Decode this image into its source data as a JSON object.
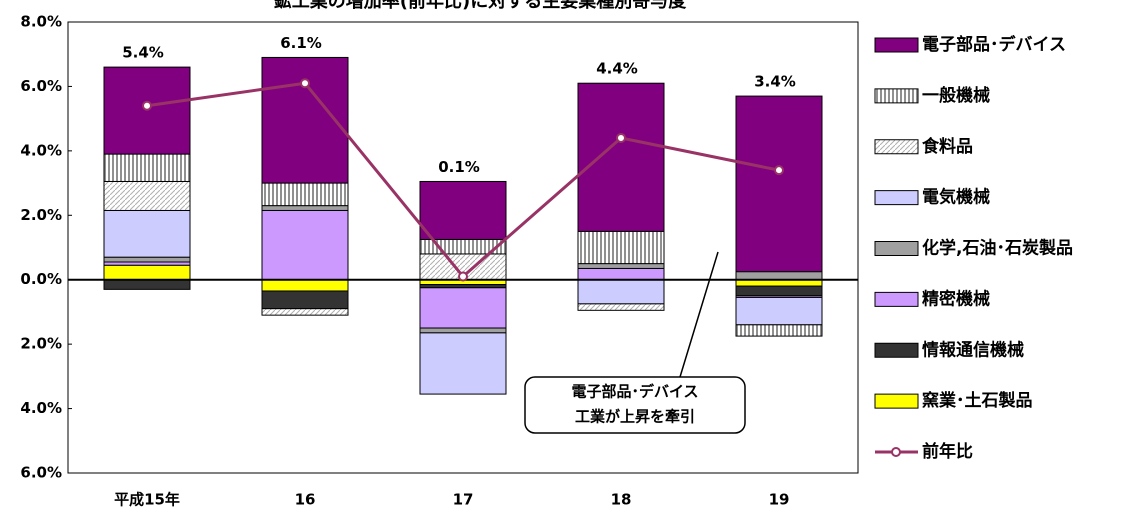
{
  "chart_data": {
    "type": "stacked_bar_line",
    "title": "鉱工業の増加率(前年比)に対する主要業種別寄与度",
    "categories": [
      "平成15年",
      "16",
      "17",
      "18",
      "19"
    ],
    "series": [
      {
        "name": "電子部品･デバイス",
        "color": "#800080",
        "values": [
          2.7,
          3.9,
          1.8,
          4.6,
          5.45
        ]
      },
      {
        "name": "一般機械",
        "color": "#909090",
        "pattern": "vstripe",
        "values": [
          0.85,
          0.7,
          0.45,
          1.0,
          -0.35
        ]
      },
      {
        "name": "食料品",
        "color": "#b0b0b0",
        "pattern": "diag",
        "values": [
          0.9,
          -0.2,
          0.8,
          -0.2,
          0
        ]
      },
      {
        "name": "電気機械",
        "color": "#ccccff",
        "values": [
          1.45,
          0,
          -1.9,
          -0.75,
          -0.85
        ]
      },
      {
        "name": "化学,石油･石炭製品",
        "color": "#a0a0a0",
        "values": [
          0.15,
          0.15,
          -0.15,
          0.15,
          0.25
        ]
      },
      {
        "name": "精密機械",
        "color": "#cc99ff",
        "values": [
          0.1,
          2.15,
          -1.25,
          0.35,
          -0.05
        ]
      },
      {
        "name": "情報通信機械",
        "color": "#333333",
        "values": [
          -0.3,
          -0.55,
          -0.1,
          0,
          -0.3
        ]
      },
      {
        "name": "窯業･土石製品",
        "color": "#ffff00",
        "values": [
          0.45,
          -0.35,
          -0.15,
          0,
          -0.2
        ]
      }
    ],
    "line": {
      "name": "前年比",
      "color": "#993366",
      "values": [
        5.4,
        6.1,
        0.1,
        4.4,
        3.4
      ],
      "value_labels": [
        "5.4%",
        "6.1%",
        "0.1%",
        "4.4%",
        "3.4%"
      ]
    },
    "stack_order": [
      7,
      6,
      5,
      4,
      3,
      2,
      1,
      0
    ],
    "ylim": [
      -6,
      8
    ],
    "yticks": [
      {
        "value": 8,
        "label": "8.0%"
      },
      {
        "value": 6,
        "label": "6.0%"
      },
      {
        "value": 4,
        "label": "4.0%"
      },
      {
        "value": 2,
        "label": "2.0%"
      },
      {
        "value": 0,
        "label": "0.0%"
      },
      {
        "value": -2,
        "label": "2.0%"
      },
      {
        "value": -4,
        "label": "4.0%"
      },
      {
        "value": -6,
        "label": "6.0%"
      }
    ],
    "annotation": [
      "電子部品･デバイス",
      "工業が上昇を牽引"
    ],
    "legend": "right"
  }
}
